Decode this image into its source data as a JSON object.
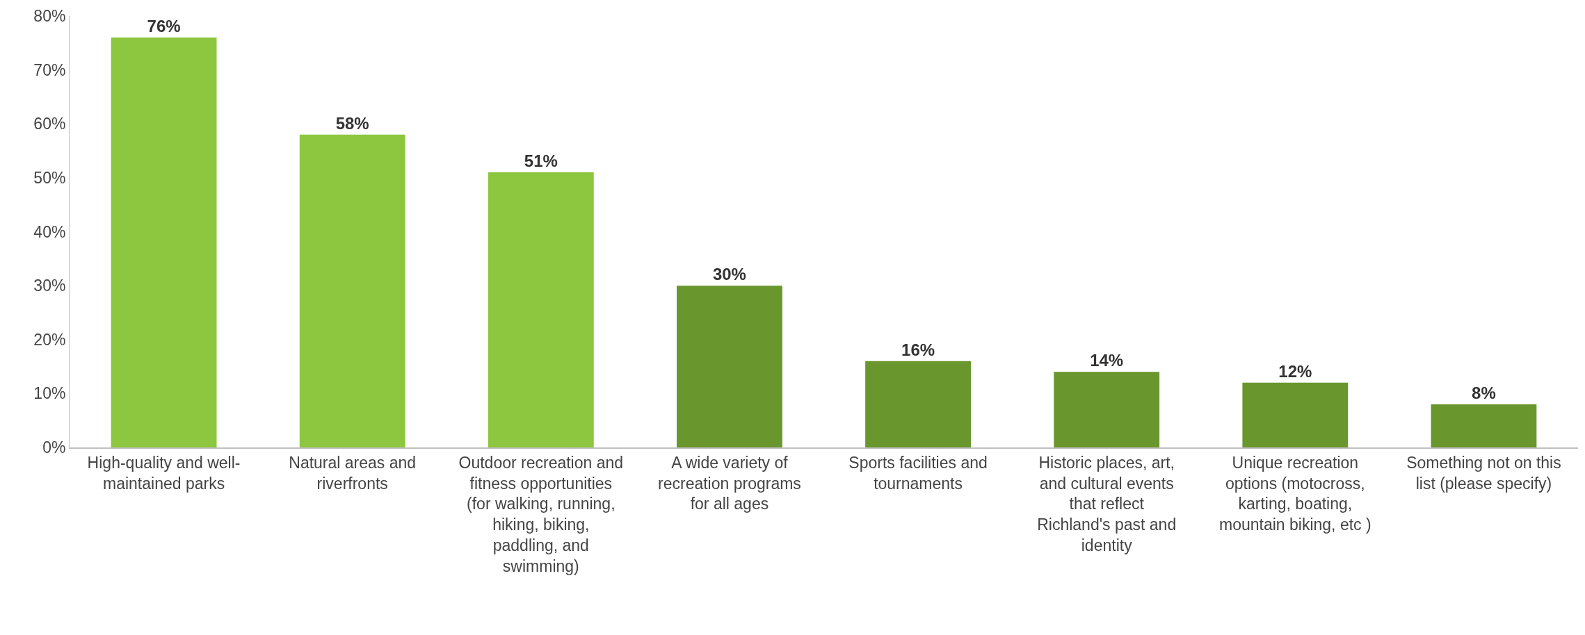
{
  "chart_data": {
    "type": "bar",
    "categories": [
      "High-quality and well-maintained parks",
      "Natural areas and riverfronts",
      "Outdoor recreation and fitness opportunities (for walking, running, hiking, biking, paddling, and swimming)",
      "A wide variety of recreation programs for all ages",
      "Sports facilities and tournaments",
      "Historic places, art, and cultural events that reflect Richland's past and identity",
      "Unique recreation options (motocross, karting, boating, mountain biking, etc )",
      "Something not on this list (please specify)"
    ],
    "values": [
      76,
      58,
      51,
      30,
      16,
      14,
      12,
      8
    ],
    "value_labels": [
      "76%",
      "58%",
      "51%",
      "30%",
      "16%",
      "14%",
      "12%",
      "8%"
    ],
    "colors": [
      "#8dc63f",
      "#8dc63f",
      "#8dc63f",
      "#6a962e",
      "#6a962e",
      "#6a962e",
      "#6a962e",
      "#6a962e"
    ],
    "ylim": [
      0,
      80
    ],
    "yticks": [
      {
        "value": 0,
        "label": "0%"
      },
      {
        "value": 10,
        "label": "10%"
      },
      {
        "value": 20,
        "label": "20%"
      },
      {
        "value": 30,
        "label": "30%"
      },
      {
        "value": 40,
        "label": "40%"
      },
      {
        "value": 50,
        "label": "50%"
      },
      {
        "value": 60,
        "label": "60%"
      },
      {
        "value": 70,
        "label": "70%"
      },
      {
        "value": 80,
        "label": "80%"
      }
    ]
  }
}
